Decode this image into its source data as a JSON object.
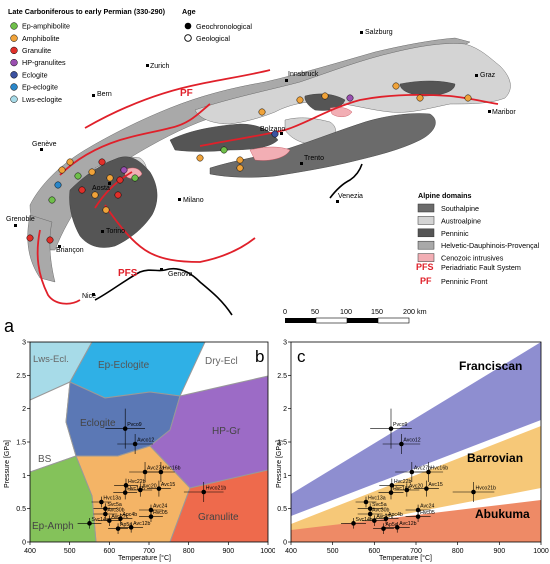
{
  "map": {
    "panel_label": "a",
    "legend_left": {
      "title": "Late Carboniferous to early Permian (330-290)",
      "items": [
        {
          "label": "Ep-amphibolite",
          "color": "#6fbf4a"
        },
        {
          "label": "Amphibolite",
          "color": "#f0a33a"
        },
        {
          "label": "Granulite",
          "color": "#e0302a"
        },
        {
          "label": "HP-granulites",
          "color": "#9a4fb0"
        },
        {
          "label": "Eclogite",
          "color": "#3c52a0"
        },
        {
          "label": "Ep-eclogite",
          "color": "#2a86c8"
        },
        {
          "label": "Lws-eclogite",
          "color": "#a7dbe8"
        }
      ]
    },
    "legend_age": {
      "title": "Age",
      "items": [
        {
          "label": "Geochronological",
          "symbol": "filled-circle"
        },
        {
          "label": "Geological",
          "symbol": "open-circle"
        }
      ]
    },
    "legend_domains": {
      "title": "Alpine domains",
      "items": [
        {
          "label": "Southalpine",
          "color": "#6b6b6b"
        },
        {
          "label": "Austroalpine",
          "color": "#d4d4d4"
        },
        {
          "label": "Penninic",
          "color": "#555555"
        },
        {
          "label": "Helvetic-Dauphinois-Provençal",
          "color": "#a9a9a9"
        },
        {
          "label": "Cenozoic intrusives",
          "color": "#f2aeb4"
        }
      ],
      "faults": [
        {
          "abbr": "PFS",
          "label": "Periadriatic Fault System",
          "color": "#e0202a"
        },
        {
          "abbr": "PF",
          "label": "Penninic Front",
          "color": "#e0202a"
        }
      ]
    },
    "fault_labels": [
      "PF",
      "PFS"
    ],
    "cities": [
      "Zurich",
      "Bern",
      "Salzburg",
      "Innsbruck",
      "Graz",
      "Maribor",
      "Genève",
      "Bolzano",
      "Trento",
      "Aosta",
      "Milano",
      "Venezia",
      "Grenoble",
      "Torino",
      "Briançon",
      "Genova",
      "Nice"
    ],
    "scale_bar": {
      "ticks": [
        "0",
        "50",
        "100",
        "150",
        "200 km"
      ]
    }
  },
  "panel_b": {
    "panel_label": "b",
    "ylabel": "Pressure [GPa]",
    "xlabel": "Temperature [°C]",
    "facies_labels": [
      "Lws-Ecl.",
      "Ep-Eclogite",
      "Dry-Ecl",
      "Eclogite",
      "HP-Gr",
      "BS",
      "Ep-Amph",
      "Granulite"
    ]
  },
  "panel_c": {
    "panel_label": "c",
    "ylabel": "Pressure [GPa]",
    "xlabel": "Temperature [°C]",
    "field_labels": [
      "Franciscan",
      "Barrovian",
      "Abukuma"
    ]
  },
  "chart_data": {
    "type": "scatter",
    "xlim": [
      400,
      1000
    ],
    "ylim": [
      0,
      3
    ],
    "xticks": [
      "400",
      "500",
      "600",
      "700",
      "800",
      "900",
      "1000"
    ],
    "yticks": [
      "0",
      "0.5",
      "1",
      "1.5",
      "2",
      "2.5",
      "3"
    ],
    "series": [
      {
        "points": [
          {
            "label": "Pvco9",
            "x": 640,
            "y": 1.7,
            "xerr": 50,
            "yerr": 0.3
          },
          {
            "label": "Avco12",
            "x": 665,
            "y": 1.47,
            "xerr": 45,
            "yerr": 0.15
          },
          {
            "label": "Avc27a",
            "x": 690,
            "y": 1.05,
            "xerr": 40,
            "yerr": 0.15
          },
          {
            "label": "Hvc16b",
            "x": 730,
            "y": 1.05,
            "xerr": 35,
            "yerr": 0.15
          },
          {
            "label": "Avc15",
            "x": 725,
            "y": 0.8,
            "xerr": 30,
            "yerr": 0.12
          },
          {
            "label": "Hvco21b",
            "x": 838,
            "y": 0.75,
            "xerr": 50,
            "yerr": 0.15
          },
          {
            "label": "Hvc22b",
            "x": 642,
            "y": 0.85,
            "xerr": 30,
            "yerr": 0.1
          },
          {
            "label": "Hvc16b",
            "x": 640,
            "y": 0.74,
            "xerr": 30,
            "yerr": 0.1
          },
          {
            "label": "Avc20",
            "x": 678,
            "y": 0.78,
            "xerr": 30,
            "yerr": 0.1
          },
          {
            "label": "Hvc13a",
            "x": 580,
            "y": 0.6,
            "xerr": 25,
            "yerr": 0.08
          },
          {
            "label": "Svc5a",
            "x": 590,
            "y": 0.5,
            "xerr": 30,
            "yerr": 0.08
          },
          {
            "label": "Avc24",
            "x": 705,
            "y": 0.48,
            "xerr": 30,
            "yerr": 0.08
          },
          {
            "label": "Avc30b",
            "x": 590,
            "y": 0.42,
            "xerr": 30,
            "yerr": 0.08
          },
          {
            "label": "Hvc05",
            "x": 705,
            "y": 0.38,
            "xerr": 30,
            "yerr": 0.08
          },
          {
            "label": "Avc27c",
            "x": 600,
            "y": 0.32,
            "xerr": 30,
            "yerr": 0.08
          },
          {
            "label": "Apc4b",
            "x": 628,
            "y": 0.35,
            "xerr": 30,
            "yerr": 0.08
          },
          {
            "label": "Svc14a",
            "x": 550,
            "y": 0.28,
            "xerr": 30,
            "yerr": 0.08
          },
          {
            "label": "Avc12b",
            "x": 655,
            "y": 0.22,
            "xerr": 30,
            "yerr": 0.08
          },
          {
            "label": "Ap5a",
            "x": 622,
            "y": 0.2,
            "xerr": 25,
            "yerr": 0.08
          }
        ]
      }
    ]
  }
}
